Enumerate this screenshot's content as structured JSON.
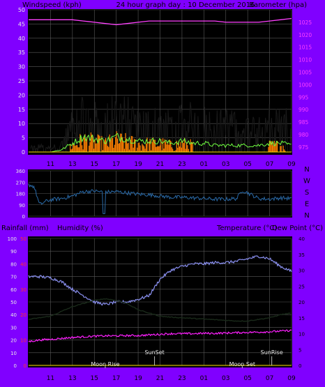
{
  "header": {
    "left": "Windspeed (kph)",
    "center": "24 hour graph day : 10 December 2016",
    "right": "Barometer (hpa)"
  },
  "lower_header": {
    "left1": "Rainfall (mm)",
    "left2": "Humidity (%)",
    "right1": "Temperature (°C)",
    "right2": "Dew Point (°C)"
  },
  "colors": {
    "frame": "#8000ff",
    "plot_bg": "#000000",
    "grid": "#5a5a5a",
    "axis_text": "#e8e8e8",
    "barometer": "#ff40ff",
    "wind_gust": "#1a1a1a",
    "wind_avg": "#70ff40",
    "wind_spike": "#ff8000",
    "direction": "#2a6aa8",
    "humidity": "#8a90f0",
    "temperature": "#1a2a1a",
    "dewpoint": "#ff20ff",
    "rain_axis": "#ff3030",
    "baseline_wind": "#ffe000",
    "plot_bg_lower": "#e8e8e8",
    "plot_bg_upper": "#d8d8d8"
  },
  "chart_data": [
    {
      "type": "line",
      "name": "wind-barometer",
      "xlabel": "",
      "x_ticks": [
        "11",
        "13",
        "15",
        "17",
        "19",
        "21",
        "23",
        "01",
        "03",
        "05",
        "07",
        "09"
      ],
      "left_axis": {
        "ticks": [
          0,
          5,
          10,
          15,
          20,
          25,
          30,
          35,
          40,
          45,
          50
        ],
        "ylim": [
          0,
          50
        ]
      },
      "right_axis": {
        "ticks": [
          975,
          980,
          985,
          990,
          995,
          1000,
          1005,
          1010,
          1015,
          1020,
          1025
        ],
        "ylim": [
          973,
          1030
        ]
      },
      "series": [
        {
          "axis": "right",
          "x": [
            9.0,
            10.0,
            11.0,
            12.0,
            13.0,
            14.0,
            15.0,
            16.0,
            17.0,
            18.0,
            19.0,
            20.0,
            21.0,
            22.0,
            23.0,
            24.0,
            25.0,
            26.0,
            27.0,
            28.0,
            29.0,
            30.0,
            31.0,
            32.0,
            33.0
          ],
          "values": [
            1026,
            1026,
            1026,
            1026,
            1026,
            1025.5,
            1025,
            1024.5,
            1024,
            1024.5,
            1025,
            1025.5,
            1025.5,
            1025.5,
            1025.5,
            1025.5,
            1025.5,
            1025.5,
            1025,
            1025,
            1025,
            1025,
            1025.5,
            1026,
            1026.5
          ]
        }
      ],
      "wind_profile": {
        "x": [
          9,
          10,
          11,
          12,
          13,
          14,
          15,
          16,
          17,
          18,
          19,
          20,
          21,
          22,
          23,
          24,
          25,
          26,
          27,
          28,
          29,
          30,
          31,
          32,
          33
        ],
        "gust_max": [
          2,
          3,
          2,
          4,
          15,
          20,
          18,
          17,
          22,
          20,
          17,
          16,
          17,
          15,
          17,
          18,
          17,
          15,
          16,
          14,
          14,
          14,
          18,
          17,
          14
        ],
        "avg_max": [
          0,
          0,
          0,
          1,
          4,
          7,
          6,
          5,
          7,
          6,
          5,
          5,
          5,
          4,
          5,
          4,
          4,
          3,
          3,
          3,
          3,
          3,
          4,
          4,
          3
        ]
      }
    },
    {
      "type": "line",
      "name": "wind-direction",
      "y_ticks": [
        "N",
        "W",
        "S",
        "E",
        "N"
      ],
      "left_ticks": [
        360,
        270,
        180,
        90,
        0
      ],
      "ylim": [
        0,
        360
      ],
      "series": [
        {
          "x": [
            9.0,
            9.5,
            10.0,
            10.5,
            11.0,
            12.0,
            13.0,
            14.0,
            15.0,
            16.0,
            17.0,
            18.0,
            19.0,
            20.0,
            21.0,
            22.0,
            23.0,
            24.0,
            25.0,
            26.0,
            27.0,
            28.0,
            28.5,
            29.0,
            30.0,
            31.0,
            32.0,
            33.0
          ],
          "values": [
            250,
            235,
            90,
            115,
            130,
            140,
            160,
            195,
            200,
            190,
            195,
            185,
            175,
            170,
            160,
            150,
            150,
            145,
            140,
            135,
            135,
            140,
            205,
            185,
            140,
            135,
            145,
            140
          ]
        }
      ]
    },
    {
      "type": "line",
      "name": "temp-humidity",
      "x_ticks": [
        "11",
        "13",
        "15",
        "17",
        "19",
        "21",
        "23",
        "01",
        "03",
        "05",
        "07",
        "09"
      ],
      "left_axis": {
        "ticks": [
          0,
          10,
          20,
          30,
          40,
          50,
          60,
          70,
          80,
          90,
          100
        ],
        "ylim": [
          0,
          100
        ]
      },
      "rain_axis": {
        "ticks": [
          0,
          10,
          20,
          30,
          40,
          50
        ]
      },
      "right_axis": {
        "ticks": [
          0,
          5,
          10,
          15,
          20,
          25,
          30,
          35,
          40
        ],
        "ylim": [
          0,
          40
        ]
      },
      "annotations": [
        {
          "text": "Moon Rise",
          "x": 16.0,
          "row": "bottom"
        },
        {
          "text": "SunSet",
          "x": 20.5,
          "row": "top"
        },
        {
          "text": "Moon Set",
          "x": 28.5,
          "row": "bottom"
        },
        {
          "text": "SunRise",
          "x": 31.2,
          "row": "top"
        }
      ],
      "series": [
        {
          "axis": "left",
          "x": [
            9,
            10,
            11,
            12,
            13,
            14,
            15,
            16,
            17,
            18,
            19,
            20,
            21,
            22,
            23,
            24,
            25,
            26,
            27,
            28,
            29,
            30,
            31,
            32,
            33
          ],
          "values": [
            70,
            70,
            69,
            66,
            60,
            55,
            50,
            48,
            50,
            50,
            52,
            55,
            68,
            75,
            78,
            80,
            80,
            81,
            81,
            82,
            84,
            86,
            84,
            78,
            74
          ]
        },
        {
          "axis": "right",
          "x": [
            9,
            10,
            11,
            12,
            13,
            14,
            15,
            16,
            17,
            18,
            19,
            20,
            21,
            22,
            23,
            24,
            25,
            26,
            27,
            28,
            29,
            30,
            31,
            32,
            33
          ],
          "values": [
            14.5,
            15,
            15.5,
            17,
            18.5,
            19.5,
            20.5,
            21,
            20.5,
            19.5,
            17.5,
            16.5,
            15.5,
            15.2,
            15,
            14.8,
            14.6,
            14.4,
            14.2,
            14,
            14,
            14.5,
            15,
            16,
            16.5
          ]
        },
        {
          "axis": "right",
          "x": [
            9,
            10,
            11,
            12,
            13,
            14,
            15,
            16,
            17,
            18,
            19,
            20,
            21,
            22,
            23,
            24,
            25,
            26,
            27,
            28,
            29,
            30,
            31,
            32,
            33
          ],
          "values": [
            7.5,
            8,
            8.2,
            8.5,
            8.8,
            9,
            9.2,
            9.3,
            9.3,
            9.4,
            9.4,
            9.6,
            9.8,
            10,
            10,
            10,
            10.1,
            10.1,
            10.2,
            10.3,
            10.4,
            10.5,
            10.6,
            10.8,
            11
          ]
        }
      ]
    }
  ]
}
